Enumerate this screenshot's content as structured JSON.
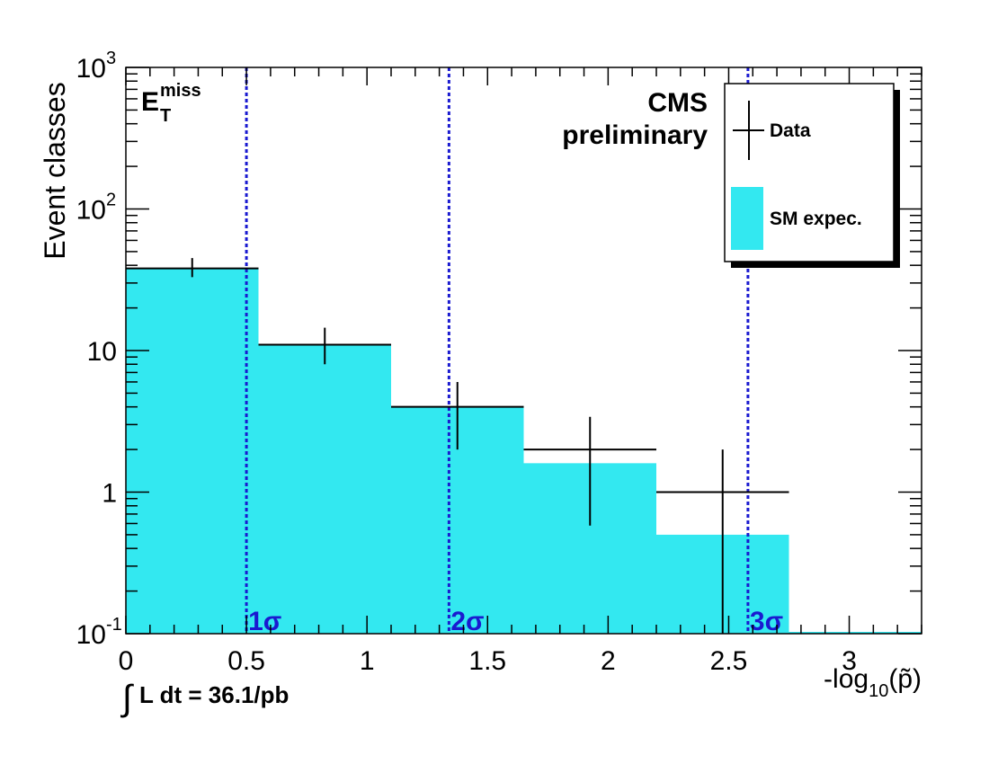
{
  "chart_data": {
    "type": "bar",
    "xlabel_prefix": "-log",
    "xlabel_sub": "10",
    "xlabel_suffix": "(p̃)",
    "ylabel": "Event classes",
    "xlim": [
      0,
      3.3
    ],
    "ylim": [
      0.1,
      1000
    ],
    "y_scale": "log",
    "x_ticks": [
      {
        "value": 0,
        "label": "0"
      },
      {
        "value": 0.5,
        "label": "0.5"
      },
      {
        "value": 1,
        "label": "1"
      },
      {
        "value": 1.5,
        "label": "1.5"
      },
      {
        "value": 2,
        "label": "2"
      },
      {
        "value": 2.5,
        "label": "2.5"
      },
      {
        "value": 3,
        "label": "3"
      }
    ],
    "y_ticks": [
      {
        "value": 0.1,
        "base": "10",
        "exp": "-1"
      },
      {
        "value": 1,
        "base": "1",
        "exp": ""
      },
      {
        "value": 10,
        "base": "10",
        "exp": ""
      },
      {
        "value": 100,
        "base": "10",
        "exp": "2"
      },
      {
        "value": 1000,
        "base": "10",
        "exp": "3"
      }
    ],
    "bin_edges": [
      0,
      0.55,
      1.1,
      1.65,
      2.2,
      2.75,
      3.3
    ],
    "series": [
      {
        "name": "Data",
        "kind": "points",
        "color": "#000000",
        "points": [
          {
            "x": 0.275,
            "y": 38,
            "err_low": 33,
            "err_high": 45
          },
          {
            "x": 0.825,
            "y": 11,
            "err_low": 8,
            "err_high": 14.5
          },
          {
            "x": 1.375,
            "y": 4,
            "err_low": 2,
            "err_high": 6
          },
          {
            "x": 1.925,
            "y": 2,
            "err_low": 0.58,
            "err_high": 3.4
          },
          {
            "x": 2.475,
            "y": 1,
            "err_low": 0.1,
            "err_high": 2
          }
        ]
      },
      {
        "name": "SM expec.",
        "kind": "histogram",
        "color": "#33e8f0",
        "values": [
          38,
          11,
          4,
          1.6,
          0.5,
          0
        ]
      }
    ],
    "sigma_lines": [
      {
        "x": 0.5,
        "label": "1σ"
      },
      {
        "x": 1.34,
        "label": "2σ"
      },
      {
        "x": 2.58,
        "label": "3σ"
      }
    ],
    "sigma_color": "#1a1ad0",
    "legend_placement": "top-right",
    "grid": false
  },
  "annotations": {
    "met_main": "E",
    "met_sup": "miss",
    "met_sub": "T",
    "cms_line1": "CMS",
    "cms_line2": "preliminary",
    "lumi_integral": "∫",
    "lumi_text": "L dt = 36.1/pb"
  }
}
